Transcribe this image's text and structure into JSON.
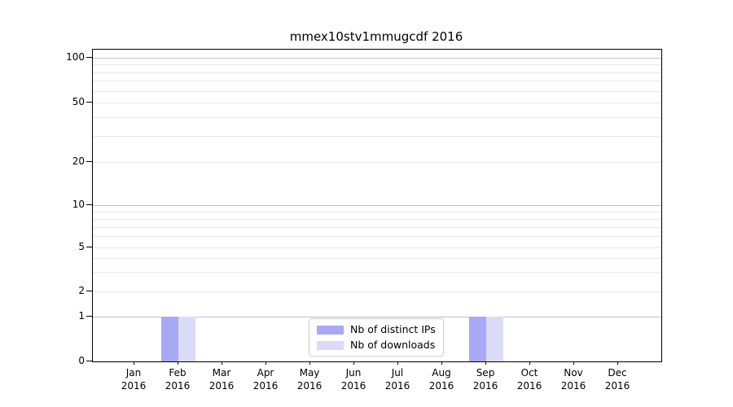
{
  "chart_data": {
    "type": "bar",
    "title": "mmex10stv1mmugcdf 2016",
    "x_months": [
      "Jan",
      "Feb",
      "Mar",
      "Apr",
      "May",
      "Jun",
      "Jul",
      "Aug",
      "Sep",
      "Oct",
      "Nov",
      "Dec"
    ],
    "x_year": "2016",
    "series": [
      {
        "name": "Nb of distinct IPs",
        "color": "#a8a8f4",
        "values": [
          0,
          1,
          0,
          0,
          0,
          0,
          0,
          0,
          1,
          0,
          0,
          0
        ]
      },
      {
        "name": "Nb of downloads",
        "color": "#dbdbf8",
        "values": [
          0,
          1,
          0,
          0,
          0,
          0,
          0,
          0,
          1,
          0,
          0,
          0
        ]
      }
    ],
    "y_ticks": [
      0,
      1,
      2,
      5,
      10,
      20,
      50,
      100
    ],
    "y_major_gridlines": [
      1,
      10,
      100
    ],
    "y_minor_gridlines": [
      2,
      3,
      4,
      5,
      6,
      7,
      8,
      9,
      20,
      30,
      40,
      50,
      60,
      70,
      80,
      90
    ],
    "ylim": [
      0,
      100
    ],
    "yscale": "log1p",
    "grid": true,
    "legend_position": "lower center"
  },
  "colors": {
    "major_grid": "#c0c0c0",
    "minor_grid": "#e8e8e8",
    "spine": "#000000",
    "text": "#000000",
    "legend_border": "#cccccc"
  }
}
